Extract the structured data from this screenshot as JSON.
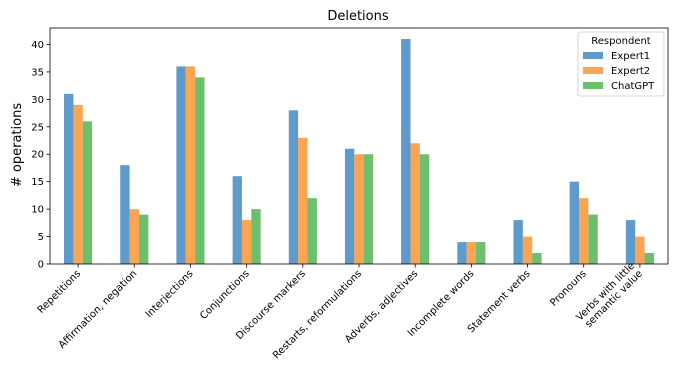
{
  "chart_data": {
    "type": "bar",
    "title": "Deletions",
    "xlabel": "",
    "ylabel": "# operations",
    "ylim": [
      0,
      43
    ],
    "yticks": [
      0,
      5,
      10,
      15,
      20,
      25,
      30,
      35,
      40
    ],
    "grid": false,
    "legend": {
      "title": "Respondent",
      "placement": "top-right"
    },
    "categories": [
      "Repetitions",
      "Affirmation, negation",
      "Interjections",
      "Conjunctions",
      "Discourse markers",
      "Restarts, reformulations",
      "Adverbs, adjectives",
      "Incomplete words",
      "Statement verbs",
      "Pronouns",
      "Verbs with little\nsemantic value"
    ],
    "series": [
      {
        "name": "Expert1",
        "color": "#4c8fc7",
        "values": [
          31,
          18,
          36,
          16,
          28,
          21,
          41,
          4,
          8,
          15,
          8
        ]
      },
      {
        "name": "Expert2",
        "color": "#fb9a3e",
        "values": [
          29,
          10,
          36,
          8,
          23,
          20,
          22,
          4,
          5,
          12,
          5
        ]
      },
      {
        "name": "ChatGPT",
        "color": "#5cb85c",
        "values": [
          26,
          9,
          34,
          10,
          12,
          20,
          20,
          4,
          2,
          9,
          2
        ]
      }
    ]
  }
}
